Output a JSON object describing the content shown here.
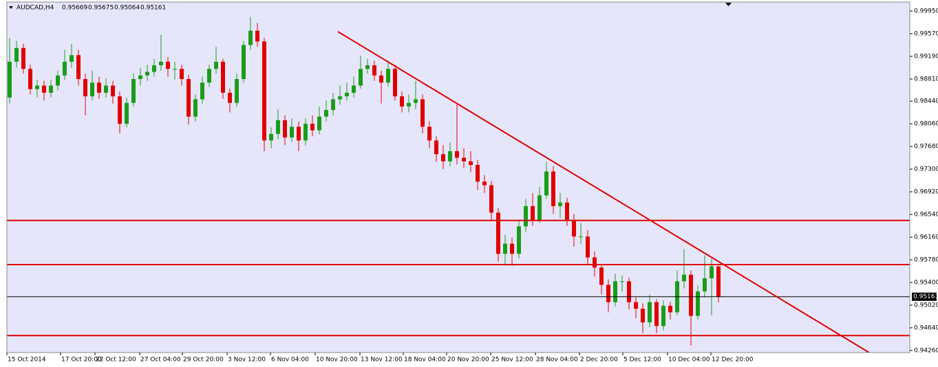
{
  "chart_data": {
    "type": "candlestick",
    "symbol": "AUDCAD,H4",
    "colors": {
      "background": "#e6e6fa",
      "bull": "#1a9c1a",
      "bear": "#e00000",
      "lines": "#e00000",
      "price_line": "#000000"
    },
    "open": [
      0.985,
      0.991,
      0.9933,
      0.9898,
      0.9864,
      0.987,
      0.9858,
      0.987,
      0.9887,
      0.991,
      0.9921,
      0.9881,
      0.9852,
      0.9875,
      0.9858,
      0.987,
      0.9852,
      0.9806,
      0.9841,
      0.9881,
      0.9887,
      0.9893,
      0.9904,
      0.991,
      0.9898,
      0.9898,
      0.9881,
      0.9818,
      0.9847,
      0.9875,
      0.9898,
      0.991,
      0.9858,
      0.9841,
      0.9881,
      0.9938,
      0.9962,
      0.9944,
      0.9778,
      0.9789,
      0.9812,
      0.9783,
      0.9801,
      0.9778,
      0.9806,
      0.9795,
      0.9818,
      0.9829,
      0.9847,
      0.9852,
      0.9858,
      0.987,
      0.9898,
      0.9904,
      0.9887,
      0.9875,
      0.9898,
      0.9852,
      0.9835,
      0.9841,
      0.9847,
      0.9801,
      0.9778,
      0.9755,
      0.9743,
      0.976,
      0.9749,
      0.9743,
      0.9737,
      0.9709,
      0.9703,
      0.9657,
      0.9588,
      0.9605,
      0.9588,
      0.9634,
      0.9668,
      0.9645,
      0.9686,
      0.9726,
      0.9668,
      0.9674,
      0.9645,
      0.9617,
      0.9617,
      0.9582,
      0.9565,
      0.9536,
      0.9507,
      0.9542,
      0.9542,
      0.9507,
      0.9496,
      0.9473,
      0.9507,
      0.9467,
      0.9501,
      0.949,
      0.9542,
      0.9553,
      0.9484,
      0.9525,
      0.9547,
      0.95669
    ],
    "high": [
      0.995,
      0.9945,
      0.994,
      0.9905,
      0.988,
      0.9878,
      0.988,
      0.9895,
      0.993,
      0.994,
      0.993,
      0.989,
      0.9895,
      0.9885,
      0.9882,
      0.9878,
      0.986,
      0.985,
      0.989,
      0.99,
      0.9905,
      0.9915,
      0.9955,
      0.9918,
      0.991,
      0.9905,
      0.9888,
      0.9855,
      0.9885,
      0.9905,
      0.9935,
      0.9915,
      0.9865,
      0.989,
      0.9945,
      0.9985,
      0.9975,
      0.995,
      0.98,
      0.983,
      0.982,
      0.9815,
      0.981,
      0.9815,
      0.982,
      0.9835,
      0.9845,
      0.9858,
      0.987,
      0.9875,
      0.9885,
      0.992,
      0.9915,
      0.9912,
      0.9895,
      0.9912,
      0.9905,
      0.986,
      0.9855,
      0.9878,
      0.9855,
      0.981,
      0.9785,
      0.977,
      0.9775,
      0.9838,
      0.9765,
      0.976,
      0.9745,
      0.972,
      0.971,
      0.9665,
      0.962,
      0.9615,
      0.9645,
      0.968,
      0.969,
      0.97,
      0.9742,
      0.9735,
      0.969,
      0.9682,
      0.9655,
      0.964,
      0.9628,
      0.9592,
      0.957,
      0.9545,
      0.9555,
      0.9552,
      0.9548,
      0.9515,
      0.9505,
      0.952,
      0.9512,
      0.951,
      0.9508,
      0.956,
      0.9596,
      0.956,
      0.9535,
      0.9585,
      0.958,
      0.95675
    ],
    "low": [
      0.984,
      0.99,
      0.989,
      0.9855,
      0.985,
      0.9845,
      0.985,
      0.9862,
      0.988,
      0.99,
      0.987,
      0.982,
      0.9845,
      0.9848,
      0.985,
      0.984,
      0.979,
      0.98,
      0.9835,
      0.987,
      0.9878,
      0.9885,
      0.9895,
      0.9885,
      0.988,
      0.987,
      0.9805,
      0.981,
      0.984,
      0.9868,
      0.989,
      0.9848,
      0.9825,
      0.9835,
      0.9875,
      0.993,
      0.9935,
      0.976,
      0.9765,
      0.978,
      0.977,
      0.9775,
      0.976,
      0.977,
      0.9785,
      0.9788,
      0.981,
      0.982,
      0.9838,
      0.9845,
      0.985,
      0.9865,
      0.989,
      0.9878,
      0.984,
      0.9868,
      0.9845,
      0.9825,
      0.9825,
      0.983,
      0.979,
      0.9765,
      0.9742,
      0.973,
      0.9735,
      0.9738,
      0.9732,
      0.9725,
      0.9695,
      0.969,
      0.9645,
      0.9575,
      0.957,
      0.9568,
      0.958,
      0.9625,
      0.9635,
      0.964,
      0.968,
      0.9655,
      0.9648,
      0.9635,
      0.96,
      0.9605,
      0.957,
      0.955,
      0.952,
      0.949,
      0.95,
      0.9525,
      0.9495,
      0.948,
      0.9455,
      0.9465,
      0.9455,
      0.946,
      0.9478,
      0.9485,
      0.953,
      0.9434,
      0.9478,
      0.9515,
      0.9485,
      0.95064
    ],
    "close": [
      0.991,
      0.9933,
      0.9898,
      0.9864,
      0.987,
      0.9858,
      0.987,
      0.9887,
      0.991,
      0.9921,
      0.9881,
      0.9852,
      0.9875,
      0.9858,
      0.987,
      0.9852,
      0.9806,
      0.9841,
      0.9881,
      0.9887,
      0.9893,
      0.9904,
      0.991,
      0.9898,
      0.9898,
      0.9881,
      0.9818,
      0.9847,
      0.9875,
      0.9898,
      0.991,
      0.9858,
      0.9841,
      0.9881,
      0.9938,
      0.9962,
      0.9944,
      0.9778,
      0.9789,
      0.9812,
      0.9783,
      0.9801,
      0.9778,
      0.9806,
      0.9795,
      0.9818,
      0.9829,
      0.9847,
      0.9852,
      0.9858,
      0.987,
      0.9898,
      0.9904,
      0.9887,
      0.9875,
      0.9898,
      0.9852,
      0.9835,
      0.9841,
      0.9847,
      0.9801,
      0.9778,
      0.9755,
      0.9743,
      0.976,
      0.9749,
      0.9743,
      0.9737,
      0.9709,
      0.9703,
      0.9657,
      0.9588,
      0.9605,
      0.9588,
      0.9634,
      0.9668,
      0.9645,
      0.9686,
      0.9726,
      0.9668,
      0.9674,
      0.9645,
      0.9617,
      0.9617,
      0.9582,
      0.9565,
      0.9536,
      0.9507,
      0.9542,
      0.9542,
      0.9507,
      0.9496,
      0.9473,
      0.9507,
      0.9467,
      0.9501,
      0.949,
      0.9542,
      0.9553,
      0.9484,
      0.9525,
      0.9547,
      0.9567,
      0.95161
    ],
    "xlim": [
      -0.4,
      130.8
    ],
    "ylim": [
      0.94225,
      1.001
    ],
    "yticks": [
      {
        "value": 0.9995,
        "label": "0.99950"
      },
      {
        "value": 0.9957,
        "label": "0.99570"
      },
      {
        "value": 0.9919,
        "label": "0.99190"
      },
      {
        "value": 0.9881,
        "label": "0.98810"
      },
      {
        "value": 0.9844,
        "label": "0.98440"
      },
      {
        "value": 0.9806,
        "label": "0.98060"
      },
      {
        "value": 0.9768,
        "label": "0.97680"
      },
      {
        "value": 0.973,
        "label": "0.97300"
      },
      {
        "value": 0.9692,
        "label": "0.96920"
      },
      {
        "value": 0.9654,
        "label": "0.96540"
      },
      {
        "value": 0.9616,
        "label": "0.96160"
      },
      {
        "value": 0.9578,
        "label": "0.95780"
      },
      {
        "value": 0.954,
        "label": "0.95400"
      },
      {
        "value": 0.9502,
        "label": "0.95020"
      },
      {
        "value": 0.9464,
        "label": "0.94640"
      },
      {
        "value": 0.9426,
        "label": "0.94260"
      }
    ],
    "xticks": [
      {
        "value": -0.4,
        "label": "15 Oct 2014"
      },
      {
        "value": 7.4,
        "label": "17 Oct 20:00"
      },
      {
        "value": 12.4,
        "label": "22 Oct 12:00"
      },
      {
        "value": 18.9,
        "label": "27 Oct 04:00"
      },
      {
        "value": 25.1,
        "label": "29 Oct 20:00"
      },
      {
        "value": 31.6,
        "label": "3 Nov 12:00"
      },
      {
        "value": 37.9,
        "label": "6 Nov 04:00"
      },
      {
        "value": 44.4,
        "label": "10 Nov 20:00"
      },
      {
        "value": 50.9,
        "label": "13 Nov 12:00"
      },
      {
        "value": 57.2,
        "label": "18 Nov 04:00"
      },
      {
        "value": 63.5,
        "label": "20 Nov 20:00"
      },
      {
        "value": 69.9,
        "label": "25 Nov 12:00"
      },
      {
        "value": 76.4,
        "label": "28 Nov 04:00"
      },
      {
        "value": 82.8,
        "label": "2 Dec 20:00"
      },
      {
        "value": 89.1,
        "label": "5 Dec 12:00"
      },
      {
        "value": 95.6,
        "label": "10 Dec 04:00"
      },
      {
        "value": 101.9,
        "label": "12 Dec 20:00"
      }
    ],
    "horizontal_lines": [
      0.9644,
      0.957,
      0.9451
    ],
    "price_line": 0.95161,
    "trend_line": {
      "x": [
        47.7,
        124.9
      ],
      "y": [
        0.99605,
        0.94225
      ]
    }
  }
}
